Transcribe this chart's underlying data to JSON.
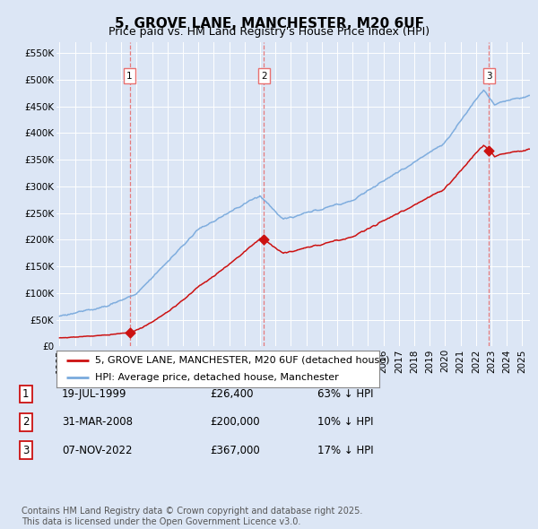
{
  "title": "5, GROVE LANE, MANCHESTER, M20 6UF",
  "subtitle": "Price paid vs. HM Land Registry's House Price Index (HPI)",
  "ylabel_ticks": [
    "£0",
    "£50K",
    "£100K",
    "£150K",
    "£200K",
    "£250K",
    "£300K",
    "£350K",
    "£400K",
    "£450K",
    "£500K",
    "£550K"
  ],
  "ytick_values": [
    0,
    50000,
    100000,
    150000,
    200000,
    250000,
    300000,
    350000,
    400000,
    450000,
    500000,
    550000
  ],
  "ylim": [
    0,
    570000
  ],
  "xlim_start": 1994.8,
  "xlim_end": 2025.5,
  "background_color": "#dce6f5",
  "plot_bg_color": "#dce6f5",
  "grid_color": "#ffffff",
  "sale_color": "#cc1111",
  "hpi_color": "#7aaadd",
  "vline_color": "#e87070",
  "sale_dates": [
    1999.54,
    2008.24,
    2022.85
  ],
  "sale_prices": [
    26400,
    200000,
    367000
  ],
  "sale_labels": [
    "1",
    "2",
    "3"
  ],
  "legend_sale_label": "5, GROVE LANE, MANCHESTER, M20 6UF (detached house)",
  "legend_hpi_label": "HPI: Average price, detached house, Manchester",
  "table_data": [
    [
      "1",
      "19-JUL-1999",
      "£26,400",
      "63% ↓ HPI"
    ],
    [
      "2",
      "31-MAR-2008",
      "£200,000",
      "10% ↓ HPI"
    ],
    [
      "3",
      "07-NOV-2022",
      "£367,000",
      "17% ↓ HPI"
    ]
  ],
  "footnote": "Contains HM Land Registry data © Crown copyright and database right 2025.\nThis data is licensed under the Open Government Licence v3.0.",
  "title_fontsize": 11,
  "subtitle_fontsize": 9,
  "tick_fontsize": 7.5,
  "legend_fontsize": 8,
  "table_fontsize": 8.5,
  "footnote_fontsize": 7
}
